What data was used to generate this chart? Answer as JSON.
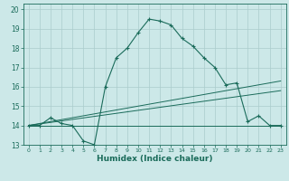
{
  "xlabel": "Humidex (Indice chaleur)",
  "bg_color": "#cce8e8",
  "grid_color": "#aacccc",
  "line_color": "#1a6b5a",
  "xlim": [
    -0.5,
    23.5
  ],
  "ylim": [
    13.0,
    20.3
  ],
  "yticks": [
    13,
    14,
    15,
    16,
    17,
    18,
    19,
    20
  ],
  "xticks": [
    0,
    1,
    2,
    3,
    4,
    5,
    6,
    7,
    8,
    9,
    10,
    11,
    12,
    13,
    14,
    15,
    16,
    17,
    18,
    19,
    20,
    21,
    22,
    23
  ],
  "main_x": [
    0,
    1,
    2,
    3,
    4,
    5,
    6,
    7,
    8,
    9,
    10,
    11,
    12,
    13,
    14,
    15,
    16,
    17,
    18,
    19,
    20,
    21,
    22,
    23
  ],
  "main_y": [
    14.0,
    14.0,
    14.4,
    14.1,
    14.0,
    13.2,
    13.0,
    16.0,
    17.5,
    18.0,
    18.8,
    19.5,
    19.4,
    19.2,
    18.5,
    18.1,
    17.5,
    17.0,
    16.1,
    16.2,
    14.2,
    14.5,
    14.0,
    14.0
  ],
  "trend1_x": [
    0,
    23
  ],
  "trend1_y": [
    14.0,
    14.0
  ],
  "trend2_x": [
    0,
    23
  ],
  "trend2_y": [
    14.0,
    15.8
  ],
  "trend3_x": [
    0,
    23
  ],
  "trend3_y": [
    14.0,
    16.3
  ]
}
